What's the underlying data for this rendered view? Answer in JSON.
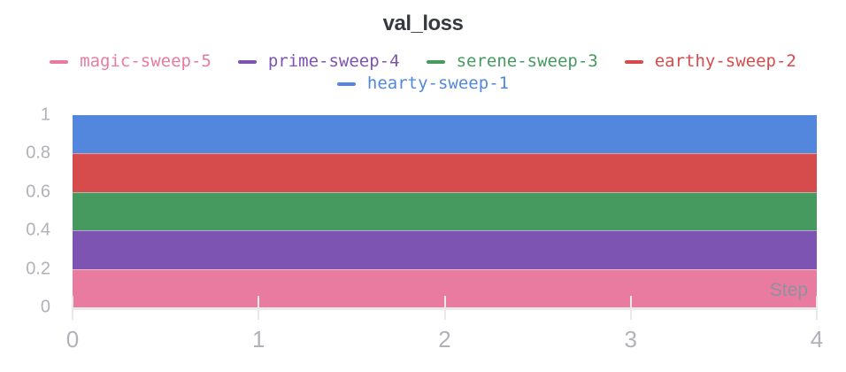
{
  "title": "val_loss",
  "axis": {
    "x_label": "Step",
    "xlim": [
      0,
      4
    ],
    "ylim": [
      0,
      1
    ],
    "x_ticks": [
      {
        "value": 0,
        "label": "0"
      },
      {
        "value": 1,
        "label": "1"
      },
      {
        "value": 2,
        "label": "2"
      },
      {
        "value": 3,
        "label": "3"
      },
      {
        "value": 4,
        "label": "4"
      }
    ],
    "y_ticks": [
      {
        "value": 0,
        "label": "0"
      },
      {
        "value": 0.2,
        "label": "0.2"
      },
      {
        "value": 0.4,
        "label": "0.4"
      },
      {
        "value": 0.6,
        "label": "0.6"
      },
      {
        "value": 0.8,
        "label": "0.8"
      },
      {
        "value": 1,
        "label": "1"
      }
    ]
  },
  "legend": {
    "items": [
      {
        "label": "magic-sweep-5",
        "color": "#E87B9F"
      },
      {
        "label": "prime-sweep-4",
        "color": "#7D54B2"
      },
      {
        "label": "serene-sweep-3",
        "color": "#479A5F"
      },
      {
        "label": "earthy-sweep-2",
        "color": "#D64C4C"
      },
      {
        "label": "hearty-sweep-1",
        "color": "#5387DD"
      }
    ]
  },
  "chart_data": {
    "type": "area",
    "stacked": true,
    "title": "val_loss",
    "xlabel": "Step",
    "ylabel": "",
    "xlim": [
      0,
      4
    ],
    "ylim": [
      0,
      1
    ],
    "legend_position": "top",
    "grid": "x-tick-marks-only",
    "x": [
      0,
      1,
      2,
      3,
      4
    ],
    "stack_order_bottom_to_top": [
      "magic-sweep-5",
      "prime-sweep-4",
      "serene-sweep-3",
      "earthy-sweep-2",
      "hearty-sweep-1"
    ],
    "series": [
      {
        "name": "magic-sweep-5",
        "color": "#E87B9F",
        "values": [
          0.2,
          0.2,
          0.2,
          0.2,
          0.2
        ]
      },
      {
        "name": "prime-sweep-4",
        "color": "#7D54B2",
        "values": [
          0.2,
          0.2,
          0.2,
          0.2,
          0.2
        ]
      },
      {
        "name": "serene-sweep-3",
        "color": "#479A5F",
        "values": [
          0.2,
          0.2,
          0.2,
          0.2,
          0.2
        ]
      },
      {
        "name": "earthy-sweep-2",
        "color": "#D64C4C",
        "values": [
          0.2,
          0.2,
          0.2,
          0.2,
          0.2
        ]
      },
      {
        "name": "hearty-sweep-1",
        "color": "#5387DD",
        "values": [
          0.2,
          0.2,
          0.2,
          0.2,
          0.2
        ]
      }
    ]
  },
  "colors": {
    "background": "#ffffff",
    "title_text": "#363a40",
    "tick_label": "#b0b2ba",
    "axis_line": "#e9e9ec",
    "step_label": "#8f929a"
  }
}
